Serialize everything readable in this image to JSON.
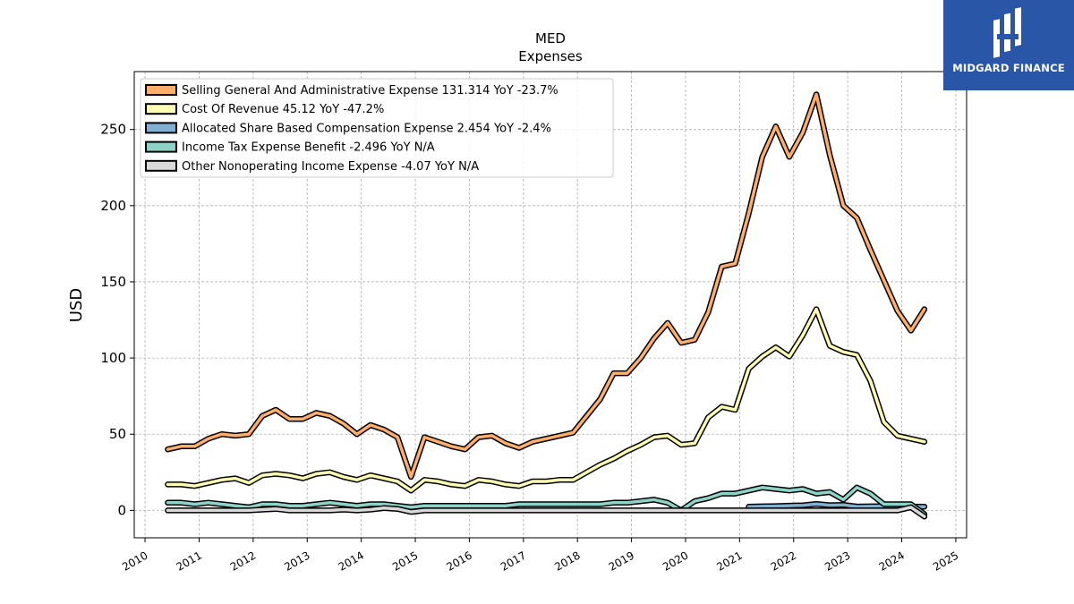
{
  "chart_data": {
    "type": "line",
    "title": "MED",
    "subtitle": "Expenses",
    "ylabel": "USD",
    "xlabel": "",
    "ylim": [
      -18,
      288
    ],
    "xlim": [
      2009.8,
      2025.2
    ],
    "x_ticks": [
      "2010",
      "2011",
      "2012",
      "2013",
      "2014",
      "2015",
      "2016",
      "2017",
      "2018",
      "2019",
      "2020",
      "2021",
      "2022",
      "2023",
      "2024",
      "2025"
    ],
    "y_ticks": [
      "0",
      "50",
      "100",
      "150",
      "200",
      "250"
    ],
    "grid": true,
    "legend_position": "top-left",
    "series": [
      {
        "name": "Selling General And Administrative Expense  131.314 YoY -23.7%",
        "color": "#fdae6b",
        "x": [
          2010.42,
          2010.67,
          2010.92,
          2011.17,
          2011.42,
          2011.67,
          2011.92,
          2012.17,
          2012.42,
          2012.67,
          2012.92,
          2013.17,
          2013.42,
          2013.67,
          2013.92,
          2014.17,
          2014.42,
          2014.67,
          2014.92,
          2015.17,
          2015.42,
          2015.67,
          2015.92,
          2016.17,
          2016.42,
          2016.67,
          2016.92,
          2017.17,
          2017.42,
          2017.67,
          2017.92,
          2018.17,
          2018.42,
          2018.67,
          2018.92,
          2019.17,
          2019.42,
          2019.67,
          2019.92,
          2020.17,
          2020.42,
          2020.67,
          2020.92,
          2021.17,
          2021.42,
          2021.67,
          2021.92,
          2022.17,
          2022.42,
          2022.67,
          2022.92,
          2023.17,
          2023.42,
          2023.67,
          2023.92,
          2024.17,
          2024.42
        ],
        "values": [
          40,
          42,
          42,
          47,
          50,
          49,
          50,
          62,
          66,
          60,
          60,
          64,
          62,
          57,
          50,
          56,
          53,
          48,
          22,
          48,
          45,
          42,
          40,
          48,
          49,
          44,
          41,
          45,
          47,
          49,
          51,
          62,
          73,
          90,
          90,
          100,
          113,
          123,
          110,
          112,
          130,
          160,
          162,
          195,
          232,
          252,
          232,
          248,
          273,
          233,
          200,
          192,
          171,
          151,
          131,
          118,
          132
        ]
      },
      {
        "name": "Cost Of Revenue  45.12 YoY -47.2%",
        "color": "#ffffb3",
        "x": [
          2010.42,
          2010.67,
          2010.92,
          2011.17,
          2011.42,
          2011.67,
          2011.92,
          2012.17,
          2012.42,
          2012.67,
          2012.92,
          2013.17,
          2013.42,
          2013.67,
          2013.92,
          2014.17,
          2014.42,
          2014.67,
          2014.92,
          2015.17,
          2015.42,
          2015.67,
          2015.92,
          2016.17,
          2016.42,
          2016.67,
          2016.92,
          2017.17,
          2017.42,
          2017.67,
          2017.92,
          2018.17,
          2018.42,
          2018.67,
          2018.92,
          2019.17,
          2019.42,
          2019.67,
          2019.92,
          2020.17,
          2020.42,
          2020.67,
          2020.92,
          2021.17,
          2021.42,
          2021.67,
          2021.92,
          2022.17,
          2022.42,
          2022.67,
          2022.92,
          2023.17,
          2023.42,
          2023.67,
          2023.92,
          2024.17,
          2024.42
        ],
        "values": [
          17,
          17,
          16,
          18,
          20,
          21,
          18,
          23,
          24,
          23,
          21,
          24,
          25,
          22,
          20,
          23,
          21,
          19,
          13,
          20,
          19,
          17,
          16,
          20,
          19,
          17,
          16,
          19,
          19,
          20,
          20,
          25,
          30,
          34,
          39,
          43,
          48,
          49,
          43,
          44,
          61,
          68,
          66,
          93,
          101,
          107,
          101,
          115,
          132,
          108,
          104,
          102,
          85,
          58,
          49,
          47,
          45
        ]
      },
      {
        "name": "Allocated Share Based Compensation Expense  2.454 YoY -2.4%",
        "color": "#80b1d3",
        "x": [
          2021.17,
          2021.42,
          2021.67,
          2021.92,
          2022.17,
          2022.42,
          2022.67,
          2022.92,
          2023.17,
          2023.42,
          2023.67,
          2023.92,
          2024.17,
          2024.42
        ],
        "values": [
          2.4,
          2.6,
          2.8,
          3.1,
          3.3,
          4.2,
          3.4,
          3.6,
          2.5,
          2.6,
          2.7,
          2.5,
          2.5,
          2.45
        ]
      },
      {
        "name": "Income Tax Expense Benefit  -2.496 YoY N/A",
        "color": "#8dd3c7",
        "x": [
          2010.42,
          2010.67,
          2010.92,
          2011.17,
          2011.42,
          2011.67,
          2011.92,
          2012.17,
          2012.42,
          2012.67,
          2012.92,
          2013.17,
          2013.42,
          2013.67,
          2013.92,
          2014.17,
          2014.42,
          2014.67,
          2014.92,
          2015.17,
          2015.42,
          2015.67,
          2015.92,
          2016.17,
          2016.42,
          2016.67,
          2016.92,
          2017.17,
          2017.42,
          2017.67,
          2017.92,
          2018.17,
          2018.42,
          2018.67,
          2018.92,
          2019.17,
          2019.42,
          2019.67,
          2019.92,
          2020.17,
          2020.42,
          2020.67,
          2020.92,
          2021.17,
          2021.42,
          2021.67,
          2021.92,
          2022.17,
          2022.42,
          2022.67,
          2022.92,
          2023.17,
          2023.42,
          2023.67,
          2023.92,
          2024.17,
          2024.42
        ],
        "values": [
          5,
          5,
          4,
          5,
          4,
          3,
          2,
          4,
          4,
          3,
          3,
          4,
          5,
          4,
          3,
          4,
          4,
          3,
          2,
          3,
          3,
          3,
          3,
          3,
          3,
          3,
          4,
          4,
          4,
          4,
          4,
          4,
          4,
          5,
          5,
          6,
          7,
          5,
          0,
          6,
          8,
          11,
          11,
          13,
          15,
          14,
          13,
          14,
          11,
          12,
          7,
          15,
          11,
          4,
          4,
          4,
          -2.5
        ]
      },
      {
        "name": "Other Nonoperating Income Expense  -4.07 YoY N/A",
        "color": "#d9d9d9",
        "x": [
          2010.42,
          2010.67,
          2010.92,
          2011.17,
          2011.42,
          2011.67,
          2011.92,
          2012.17,
          2012.42,
          2012.67,
          2012.92,
          2013.17,
          2013.42,
          2013.67,
          2013.92,
          2014.17,
          2014.42,
          2014.67,
          2014.92,
          2015.17,
          2015.42,
          2015.67,
          2015.92,
          2016.17,
          2016.42,
          2016.67,
          2016.92,
          2017.17,
          2017.42,
          2017.67,
          2017.92,
          2018.17,
          2018.42,
          2018.67,
          2018.92,
          2019.17,
          2019.42,
          2019.67,
          2019.92,
          2020.17,
          2020.42,
          2020.67,
          2020.92,
          2021.17,
          2021.42,
          2021.67,
          2021.92,
          2022.17,
          2022.42,
          2022.67,
          2022.92,
          2023.17,
          2023.42,
          2023.67,
          2023.92,
          2024.17,
          2024.42
        ],
        "values": [
          0,
          0,
          0,
          0,
          0,
          0,
          0,
          0.5,
          1,
          0,
          0,
          0,
          0,
          0.5,
          0,
          0.5,
          1.5,
          1,
          -1,
          0,
          0,
          0,
          0,
          0,
          0,
          0,
          0,
          0,
          0,
          0,
          0,
          0,
          0,
          0,
          0,
          0,
          0,
          0,
          0,
          0,
          0,
          0,
          0,
          0,
          0,
          0,
          0,
          0,
          0,
          0,
          0,
          0,
          0,
          0,
          0,
          2,
          -4.07
        ]
      }
    ]
  },
  "logo": {
    "text": "MIDGARD FINANCE",
    "background": "#2a56a8"
  }
}
